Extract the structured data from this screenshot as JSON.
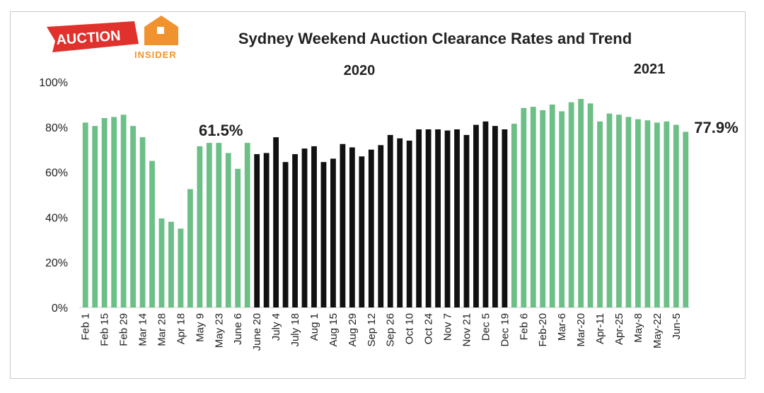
{
  "logo": {
    "main_text": "AUCTION",
    "sub_text": "INSIDER",
    "colors": {
      "banner": "#e0312c",
      "house": "#f0932f"
    }
  },
  "chart_data": {
    "type": "bar",
    "title": "Sydney Weekend Auction Clearance Rates and Trend",
    "year_labels": {
      "first": "2020",
      "second": "2021"
    },
    "xlabel": "",
    "ylabel": "",
    "ylim": [
      0,
      100
    ],
    "y_ticks": [
      "0%",
      "20%",
      "40%",
      "60%",
      "80%",
      "100%"
    ],
    "grid": false,
    "colors": {
      "highlight": "#6cbf86",
      "base": "#111111"
    },
    "categories": [
      "Feb 1",
      "",
      "Feb 15",
      "",
      "Feb 29",
      "",
      "Mar 14",
      "",
      "Mar 28",
      "",
      "Apr 18",
      "",
      "May 9",
      "",
      "May 23",
      "",
      "June 6",
      "",
      "June 20",
      "",
      "July 4",
      "",
      "July 18",
      "",
      "Aug 1",
      "",
      "Aug 15",
      "",
      "Aug 29",
      "",
      "Sep 12",
      "",
      "Sep 26",
      "",
      "Oct 10",
      "",
      "Oct 24",
      "",
      "Nov 7",
      "",
      "Nov 21",
      "",
      "Dec 5",
      "",
      "Dec 19",
      "",
      "Feb 6",
      "",
      "Feb-20",
      "",
      "Mar-6",
      "",
      "Mar-20",
      "",
      "Apr-11",
      "",
      "Apr-25",
      "",
      "May-8",
      "",
      "May-22",
      "",
      "Jun-5",
      ""
    ],
    "values": [
      82,
      80.5,
      84,
      84.5,
      85.5,
      80.5,
      75.5,
      65,
      39.5,
      38,
      35,
      52.5,
      71.5,
      73,
      73,
      68.5,
      61.5,
      73,
      68,
      68.5,
      75.5,
      64.5,
      68,
      70.5,
      71.5,
      64.5,
      66,
      72.5,
      71,
      67,
      70,
      72,
      76.5,
      75,
      74,
      79,
      79,
      79,
      78.5,
      79,
      76.5,
      81,
      82.5,
      80.5,
      79,
      81.5,
      88.5,
      89,
      87.5,
      90,
      87,
      91,
      92.5,
      90.5,
      82.5,
      86,
      85.5,
      84.5,
      83.5,
      83,
      82,
      82.5,
      81,
      77.9
    ],
    "bar_colors": [
      "highlight",
      "highlight",
      "highlight",
      "highlight",
      "highlight",
      "highlight",
      "highlight",
      "highlight",
      "highlight",
      "highlight",
      "highlight",
      "highlight",
      "highlight",
      "highlight",
      "highlight",
      "highlight",
      "highlight",
      "highlight",
      "base",
      "base",
      "base",
      "base",
      "base",
      "base",
      "base",
      "base",
      "base",
      "base",
      "base",
      "base",
      "base",
      "base",
      "base",
      "base",
      "base",
      "base",
      "base",
      "base",
      "base",
      "base",
      "base",
      "base",
      "base",
      "base",
      "base",
      "highlight",
      "highlight",
      "highlight",
      "highlight",
      "highlight",
      "highlight",
      "highlight",
      "highlight",
      "highlight",
      "highlight",
      "highlight",
      "highlight",
      "highlight",
      "highlight",
      "highlight",
      "highlight",
      "highlight",
      "highlight",
      "highlight"
    ],
    "annotations": [
      {
        "text": "61.5%",
        "bar_index": 16
      },
      {
        "text": "77.9%",
        "bar_index": 63
      }
    ]
  }
}
